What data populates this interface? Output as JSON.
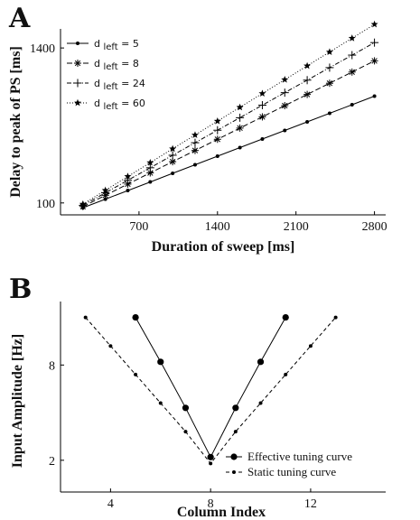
{
  "chart_data": [
    {
      "panel": "A",
      "type": "line",
      "xlabel": "Duration of sweep [ms]",
      "ylabel": "Delay to peak of PS [ms]",
      "xlim": [
        0,
        2900
      ],
      "ylim": [
        0,
        1560
      ],
      "xticks": [
        700,
        1400,
        2100,
        2800
      ],
      "yticks": [
        100,
        1400
      ],
      "legend_position": "top-left",
      "series": [
        {
          "name_main": "d",
          "name_sub": "left",
          "name_value": " = 5",
          "marker": "dot",
          "dash": "none",
          "x": [
            200,
            400,
            600,
            800,
            1000,
            1200,
            1400,
            1600,
            1800,
            2000,
            2200,
            2400,
            2600,
            2800
          ],
          "y": [
            60,
            132,
            204,
            276,
            348,
            420,
            492,
            564,
            636,
            708,
            780,
            852,
            924,
            996
          ]
        },
        {
          "name_main": "d",
          "name_sub": "left",
          "name_value": " = 8",
          "marker": "asterisk",
          "dash": "6,3",
          "x": [
            200,
            400,
            600,
            800,
            1000,
            1200,
            1400,
            1600,
            1800,
            2000,
            2200,
            2400,
            2600,
            2800
          ],
          "y": [
            70,
            164,
            258,
            352,
            446,
            540,
            634,
            728,
            822,
            916,
            1010,
            1104,
            1198,
            1292
          ]
        },
        {
          "name_main": "d",
          "name_sub": "left",
          "name_value": " = 24",
          "marker": "plus",
          "dash": "5,2,1,2",
          "x": [
            200,
            400,
            600,
            800,
            1000,
            1200,
            1400,
            1600,
            1800,
            2000,
            2200,
            2400,
            2600,
            2800
          ],
          "y": [
            80,
            185,
            290,
            395,
            500,
            605,
            710,
            815,
            920,
            1025,
            1130,
            1235,
            1340,
            1445
          ]
        },
        {
          "name_main": "d",
          "name_sub": "left",
          "name_value": " = 60",
          "marker": "star",
          "dash": "1,2",
          "x": [
            200,
            400,
            600,
            800,
            1000,
            1200,
            1400,
            1600,
            1800,
            2000,
            2200,
            2400,
            2600,
            2800
          ],
          "y": [
            90,
            206,
            322,
            438,
            554,
            670,
            786,
            902,
            1018,
            1134,
            1250,
            1366,
            1482,
            1598
          ]
        }
      ]
    },
    {
      "panel": "B",
      "type": "line",
      "xlabel": "Column Index",
      "ylabel": "Input Amplitude [Hz]",
      "xlim": [
        2,
        15
      ],
      "ylim": [
        0,
        12
      ],
      "xticks": [
        4,
        8,
        12
      ],
      "yticks": [
        2,
        8
      ],
      "legend_position": "bottom-right",
      "series": [
        {
          "name": "Effective tuning curve",
          "marker": "big-dot",
          "dash": "none",
          "x": [
            5,
            6,
            7,
            8,
            9,
            10,
            11
          ],
          "y": [
            11.0,
            8.2,
            5.3,
            2.2,
            5.3,
            8.2,
            11.0
          ]
        },
        {
          "name": "Static tuning curve",
          "marker": "dot",
          "dash": "4,3",
          "x": [
            3,
            4,
            5,
            6,
            7,
            8,
            9,
            10,
            11,
            12,
            13
          ],
          "y": [
            11.0,
            9.2,
            7.4,
            5.6,
            3.8,
            1.8,
            3.8,
            5.6,
            7.4,
            9.2,
            11.0
          ]
        }
      ]
    }
  ]
}
